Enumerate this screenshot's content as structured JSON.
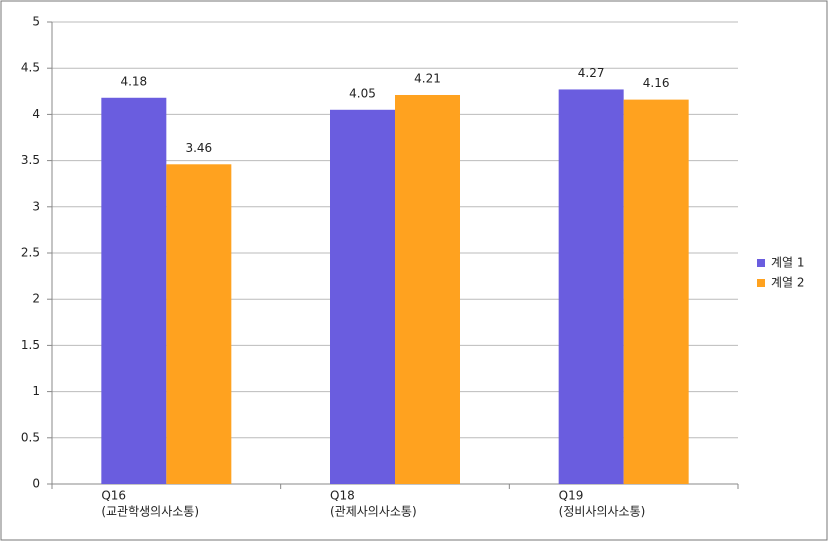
{
  "chart_data": {
    "type": "bar",
    "categories": [
      [
        "Q16",
        "(교관학생의사소통)"
      ],
      [
        "Q18",
        "(관제사의사소통)"
      ],
      [
        "Q19",
        "(정비사의사소통)"
      ]
    ],
    "series": [
      {
        "name": "계열 1",
        "color": "#6a5ddf",
        "values": [
          4.18,
          4.05,
          4.27
        ]
      },
      {
        "name": "계열 2",
        "color": "#ffa21f",
        "values": [
          3.46,
          4.21,
          4.16
        ]
      }
    ],
    "ylim": [
      0,
      5
    ],
    "yticks": [
      0,
      0.5,
      1,
      1.5,
      2,
      2.5,
      3,
      3.5,
      4,
      4.5,
      5
    ],
    "grid": true,
    "legend": "right"
  }
}
